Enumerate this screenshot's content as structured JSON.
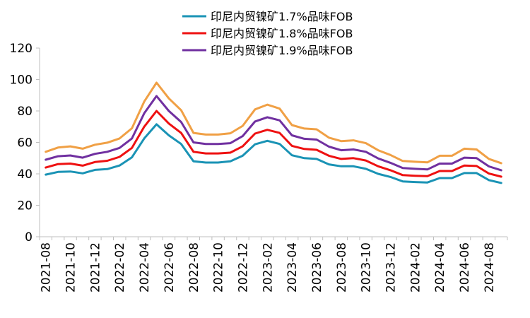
{
  "chart_data": {
    "type": "line",
    "x": [
      "2021-08",
      "2021-09",
      "2021-10",
      "2021-11",
      "2021-12",
      "2022-01",
      "2022-02",
      "2022-03",
      "2022-04",
      "2022-05",
      "2022-06",
      "2022-07",
      "2022-08",
      "2022-09",
      "2022-10",
      "2022-11",
      "2022-12",
      "2023-01",
      "2023-02",
      "2023-03",
      "2023-04",
      "2023-05",
      "2023-06",
      "2023-07",
      "2023-08",
      "2023-09",
      "2023-10",
      "2023-11",
      "2023-12",
      "2024-01",
      "2024-02",
      "2024-03",
      "2024-04",
      "2024-05",
      "2024-06",
      "2024-07",
      "2024-08",
      "2024-09"
    ],
    "x_tick_labels": [
      "2021-08",
      "2021-10",
      "2021-12",
      "2022-02",
      "2022-04",
      "2022-06",
      "2022-08",
      "2022-10",
      "2022-12",
      "2023-02",
      "2023-04",
      "2023-06",
      "2023-08",
      "2023-10",
      "2023-12",
      "2024-02",
      "2024-04",
      "2024-06",
      "2024-08"
    ],
    "y_tick_labels": [
      "0",
      "20",
      "40",
      "60",
      "80",
      "100",
      "120"
    ],
    "ylim": [
      0,
      120
    ],
    "grid": false,
    "legend_position": "top",
    "series": [
      {
        "name": "印尼内贸镍矿1.7%品味FOB",
        "color": "#1a93b5",
        "values": [
          39.5,
          41.2,
          41.5,
          40.3,
          42.5,
          43.0,
          45.3,
          50.5,
          62.5,
          71.5,
          64.5,
          59.0,
          48.0,
          47.2,
          47.2,
          48.0,
          51.5,
          58.8,
          61.0,
          59.0,
          51.8,
          50.0,
          49.5,
          46.0,
          44.8,
          44.8,
          43.2,
          40.0,
          38.0,
          35.2,
          34.8,
          34.5,
          37.3,
          37.3,
          40.5,
          40.5,
          36.0,
          34.2
        ]
      },
      {
        "name": "印尼内贸镍矿1.8%品味FOB",
        "color": "#ee1111",
        "values": [
          44.0,
          46.2,
          46.5,
          45.2,
          47.5,
          48.3,
          50.8,
          56.5,
          70.0,
          80.0,
          72.0,
          66.0,
          54.0,
          53.0,
          53.0,
          53.5,
          57.5,
          65.6,
          68.0,
          66.0,
          57.8,
          55.8,
          55.3,
          51.5,
          49.5,
          50.0,
          48.5,
          44.8,
          42.3,
          39.2,
          38.8,
          38.5,
          41.8,
          41.8,
          45.3,
          45.0,
          40.2,
          38.2
        ]
      },
      {
        "name": "印尼内贸镍矿1.9%品味FOB",
        "color": "#7030a0",
        "values": [
          49.0,
          51.2,
          51.7,
          50.3,
          52.7,
          54.0,
          56.5,
          62.5,
          78.5,
          89.5,
          80.0,
          73.0,
          60.0,
          59.0,
          59.0,
          59.5,
          64.0,
          73.3,
          76.0,
          74.0,
          64.5,
          62.3,
          61.8,
          57.3,
          55.0,
          55.5,
          54.0,
          49.8,
          47.0,
          43.7,
          43.2,
          42.8,
          46.5,
          46.5,
          50.3,
          50.0,
          44.7,
          42.3
        ]
      },
      {
        "name": "",
        "color": "#f0a045",
        "values": [
          54.0,
          56.7,
          57.5,
          56.0,
          58.5,
          59.8,
          62.5,
          69.0,
          86.0,
          98.0,
          88.0,
          80.5,
          66.0,
          65.0,
          65.0,
          65.8,
          70.5,
          81.0,
          84.0,
          81.5,
          71.0,
          68.8,
          68.3,
          63.0,
          60.8,
          61.3,
          59.5,
          55.0,
          52.0,
          48.2,
          47.7,
          47.3,
          51.5,
          51.5,
          56.0,
          55.5,
          49.5,
          46.8
        ]
      }
    ]
  }
}
